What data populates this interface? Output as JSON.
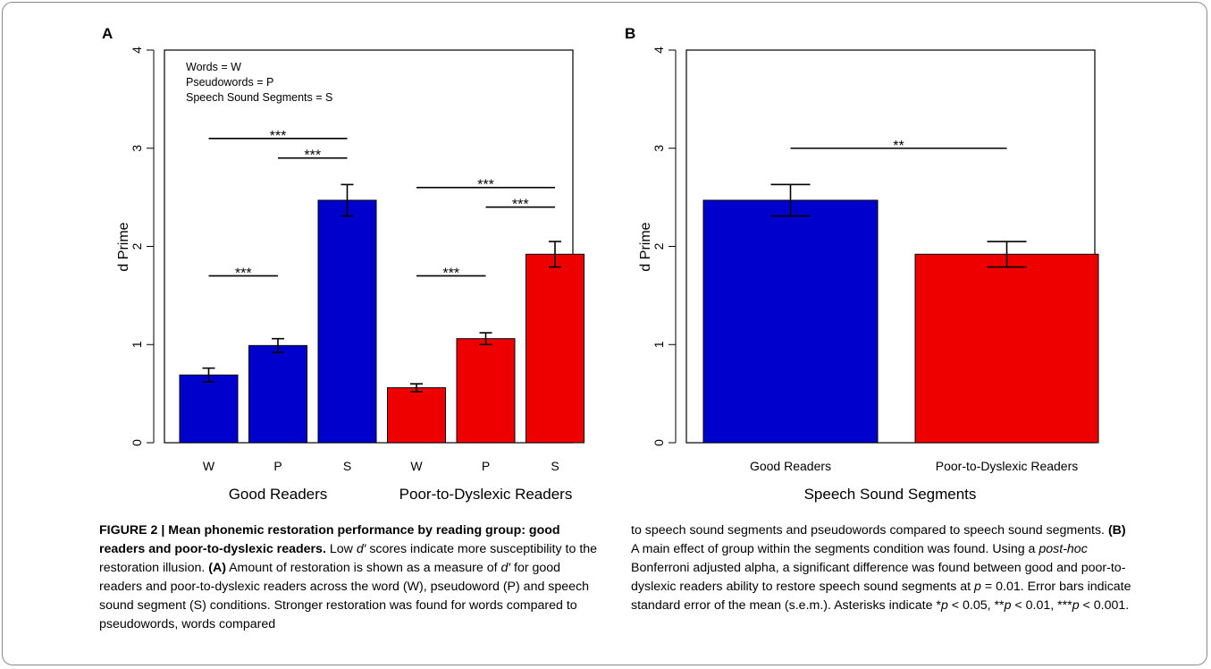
{
  "colors": {
    "good": "#0000CC",
    "poor": "#EE0000"
  },
  "chart_data": [
    {
      "type": "bar",
      "panel": "A",
      "ylabel": "d Prime",
      "ylim": [
        0,
        4
      ],
      "yticks": [
        "0",
        "1",
        "2",
        "3",
        "4"
      ],
      "legend_lines": [
        "Words = W",
        "Pseudowords = P",
        "Speech Sound Segments = S"
      ],
      "groups": [
        "Good Readers",
        "Poor-to-Dyslexic Readers"
      ],
      "bars": [
        {
          "group": "Good Readers",
          "label": "W",
          "value": 0.69,
          "err": 0.07,
          "color": "good"
        },
        {
          "group": "Good Readers",
          "label": "P",
          "value": 0.99,
          "err": 0.07,
          "color": "good"
        },
        {
          "group": "Good Readers",
          "label": "S",
          "value": 2.47,
          "err": 0.16,
          "color": "good"
        },
        {
          "group": "Poor-to-Dyslexic Readers",
          "label": "W",
          "value": 0.56,
          "err": 0.04,
          "color": "poor"
        },
        {
          "group": "Poor-to-Dyslexic Readers",
          "label": "P",
          "value": 1.06,
          "err": 0.06,
          "color": "poor"
        },
        {
          "group": "Poor-to-Dyslexic Readers",
          "label": "S",
          "value": 1.92,
          "err": 0.13,
          "color": "poor"
        }
      ],
      "significance": [
        {
          "from": 0,
          "to": 1,
          "y": 1.7,
          "label": "***"
        },
        {
          "from": 0,
          "to": 2,
          "y": 3.1,
          "label": "***"
        },
        {
          "from": 1,
          "to": 2,
          "y": 2.9,
          "label": "***"
        },
        {
          "from": 3,
          "to": 4,
          "y": 1.7,
          "label": "***"
        },
        {
          "from": 3,
          "to": 5,
          "y": 2.6,
          "label": "***"
        },
        {
          "from": 4,
          "to": 5,
          "y": 2.4,
          "label": "***"
        }
      ]
    },
    {
      "type": "bar",
      "panel": "B",
      "ylabel": "d Prime",
      "ylim": [
        0,
        4
      ],
      "yticks": [
        "0",
        "1",
        "2",
        "3",
        "4"
      ],
      "xlabel": "Speech Sound Segments",
      "bars": [
        {
          "label": "Good Readers",
          "value": 2.47,
          "err": 0.16,
          "color": "good"
        },
        {
          "label": "Poor-to-Dyslexic Readers",
          "value": 1.92,
          "err": 0.13,
          "color": "poor"
        }
      ],
      "significance": [
        {
          "from": 0,
          "to": 1,
          "y": 3.0,
          "label": "**"
        }
      ]
    }
  ],
  "caption": {
    "left": [
      {
        "t": "FIGURE 2 | Mean phonemic restoration performance by reading group: good readers and poor-to-dyslexic readers.",
        "b": true
      },
      {
        "t": " Low "
      },
      {
        "t": "d′",
        "i": true
      },
      {
        "t": " scores indicate more susceptibility to the restoration illusion. "
      },
      {
        "t": "(A)",
        "b": true
      },
      {
        "t": " Amount of restoration is shown as a measure of "
      },
      {
        "t": "d′",
        "i": true
      },
      {
        "t": " for good readers and poor-to-dyslexic readers across the word (W), pseudoword (P) and speech sound segment (S) conditions. Stronger restoration was found for words compared to pseudowords, words compared"
      }
    ],
    "right": [
      {
        "t": "to speech sound segments and pseudowords compared to speech sound segments. "
      },
      {
        "t": "(B)",
        "b": true
      },
      {
        "t": " A main effect of group within the segments condition was found. Using a "
      },
      {
        "t": "post-hoc",
        "i": true
      },
      {
        "t": " Bonferroni adjusted alpha, a significant difference was found between good and poor-to-dyslexic readers ability to restore speech sound segments at "
      },
      {
        "t": "p",
        "i": true
      },
      {
        "t": " = 0.01. Error bars indicate standard error of the mean (s.e.m.). Asterisks indicate *"
      },
      {
        "t": "p",
        "i": true
      },
      {
        "t": " < 0.05, **"
      },
      {
        "t": "p",
        "i": true
      },
      {
        "t": " < 0.01, ***"
      },
      {
        "t": "p",
        "i": true
      },
      {
        "t": " < 0.001."
      }
    ]
  }
}
